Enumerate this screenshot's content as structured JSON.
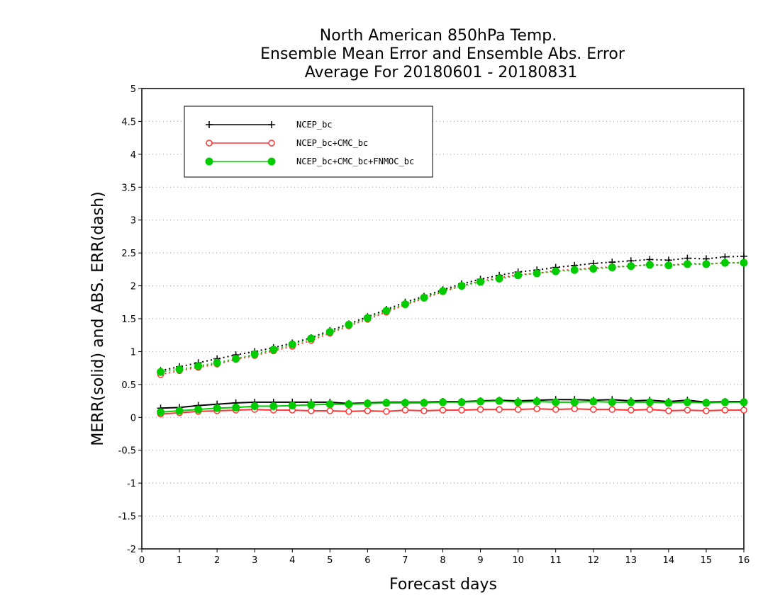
{
  "chart_data": {
    "type": "line",
    "title": [
      "North American 850hPa Temp.",
      "Ensemble Mean Error and Ensemble Abs. Error",
      "Average For 20180601 - 20180831"
    ],
    "xlabel": "Forecast days",
    "ylabel": "MERR(solid) and ABS. ERR(dash)",
    "xlim": [
      0,
      16
    ],
    "ylim": [
      -2,
      5
    ],
    "xticks": [
      0,
      1,
      2,
      3,
      4,
      5,
      6,
      7,
      8,
      9,
      10,
      11,
      12,
      13,
      14,
      15,
      16
    ],
    "yticks": [
      -2,
      -1.5,
      -1,
      -0.5,
      0,
      0.5,
      1,
      1.5,
      2,
      2.5,
      3,
      3.5,
      4,
      4.5,
      5
    ],
    "ytick_labels": [
      "-2",
      "-1.5",
      "-1",
      "-0.5",
      "0",
      "0.5",
      "1",
      "1.5",
      "2",
      "2.5",
      "3",
      "3.5",
      "4",
      "4.5",
      "5"
    ],
    "grid": "horizontal dotted",
    "legend_position": "top-left",
    "x": [
      0.5,
      1,
      1.5,
      2,
      2.5,
      3,
      3.5,
      4,
      4.5,
      5,
      5.5,
      6,
      6.5,
      7,
      7.5,
      8,
      8.5,
      9,
      9.5,
      10,
      10.5,
      11,
      11.5,
      12,
      12.5,
      13,
      13.5,
      14,
      14.5,
      15,
      15.5,
      16
    ],
    "series": [
      {
        "name": "NCEP_bc",
        "color": "#000000",
        "marker": "plus",
        "merr": [
          0.14,
          0.15,
          0.18,
          0.2,
          0.22,
          0.23,
          0.23,
          0.23,
          0.23,
          0.23,
          0.21,
          0.22,
          0.23,
          0.23,
          0.23,
          0.24,
          0.24,
          0.25,
          0.26,
          0.25,
          0.26,
          0.27,
          0.27,
          0.26,
          0.27,
          0.25,
          0.26,
          0.24,
          0.26,
          0.23,
          0.24,
          0.24
        ],
        "abs_err": [
          0.71,
          0.77,
          0.83,
          0.89,
          0.95,
          1.0,
          1.06,
          1.13,
          1.21,
          1.32,
          1.42,
          1.53,
          1.64,
          1.75,
          1.84,
          1.94,
          2.03,
          2.1,
          2.16,
          2.21,
          2.24,
          2.28,
          2.31,
          2.34,
          2.36,
          2.38,
          2.4,
          2.39,
          2.42,
          2.41,
          2.44,
          2.45
        ]
      },
      {
        "name": "NCEP_bc+CMC_bc",
        "color": "#ff3333",
        "marker": "open-circle",
        "merr": [
          0.05,
          0.07,
          0.09,
          0.1,
          0.11,
          0.12,
          0.11,
          0.11,
          0.1,
          0.1,
          0.09,
          0.1,
          0.09,
          0.11,
          0.1,
          0.11,
          0.11,
          0.12,
          0.12,
          0.12,
          0.13,
          0.12,
          0.13,
          0.12,
          0.12,
          0.11,
          0.12,
          0.1,
          0.11,
          0.1,
          0.11,
          0.11
        ],
        "abs_err": [
          0.65,
          0.71,
          0.76,
          0.81,
          0.88,
          0.94,
          1.01,
          1.08,
          1.17,
          1.28,
          1.39,
          1.49,
          1.6,
          1.71,
          1.81,
          1.91,
          2.0,
          2.07,
          2.12,
          2.17,
          2.19,
          2.23,
          2.25,
          2.27,
          2.29,
          2.3,
          2.32,
          2.31,
          2.34,
          2.33,
          2.35,
          2.35
        ]
      },
      {
        "name": "NCEP_bc+CMC_bc+FNMOC_bc",
        "color": "#00cc00",
        "marker": "filled-circle",
        "merr": [
          0.08,
          0.1,
          0.12,
          0.14,
          0.15,
          0.17,
          0.17,
          0.18,
          0.19,
          0.2,
          0.2,
          0.21,
          0.22,
          0.22,
          0.22,
          0.23,
          0.23,
          0.24,
          0.25,
          0.23,
          0.24,
          0.23,
          0.23,
          0.24,
          0.23,
          0.23,
          0.23,
          0.22,
          0.23,
          0.22,
          0.23,
          0.23
        ],
        "abs_err": [
          0.69,
          0.73,
          0.78,
          0.83,
          0.89,
          0.96,
          1.03,
          1.11,
          1.2,
          1.3,
          1.41,
          1.51,
          1.62,
          1.72,
          1.82,
          1.92,
          2.0,
          2.06,
          2.11,
          2.16,
          2.19,
          2.22,
          2.24,
          2.26,
          2.28,
          2.3,
          2.32,
          2.31,
          2.33,
          2.33,
          2.35,
          2.35
        ]
      }
    ]
  }
}
